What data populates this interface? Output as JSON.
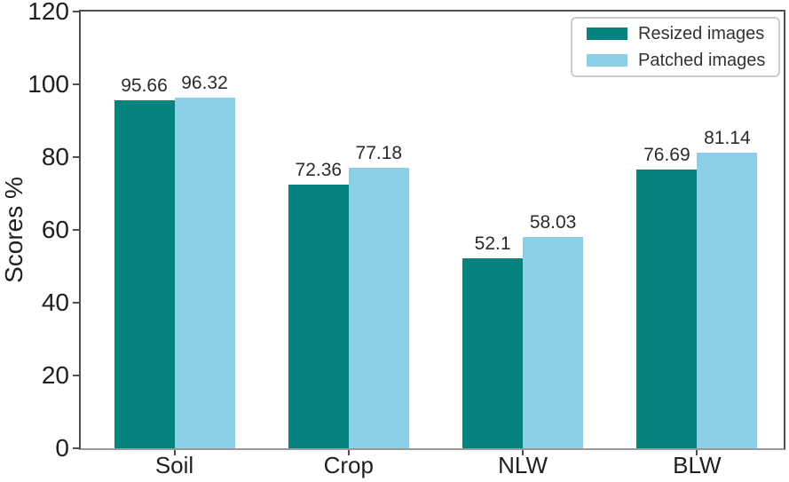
{
  "chart_data": {
    "type": "bar",
    "title": "",
    "xlabel": "",
    "ylabel": "Scores %",
    "categories": [
      "Soil",
      "Crop",
      "NLW",
      "BLW"
    ],
    "series": [
      {
        "name": "Resized images",
        "color": "#07837f",
        "values": [
          95.66,
          72.36,
          52.1,
          76.69
        ],
        "labels": [
          "95.66",
          "72.36",
          "52.1",
          "76.69"
        ]
      },
      {
        "name": "Patched images",
        "color": "#8bcfe9",
        "values": [
          96.32,
          77.18,
          58.03,
          81.14
        ],
        "labels": [
          "96.32",
          "77.18",
          "58.03",
          "81.14"
        ]
      }
    ],
    "ylim": [
      0,
      120
    ],
    "y_ticks": [
      0,
      20,
      40,
      60,
      80,
      100,
      120
    ],
    "grid": false,
    "legend_position": "upper right"
  }
}
